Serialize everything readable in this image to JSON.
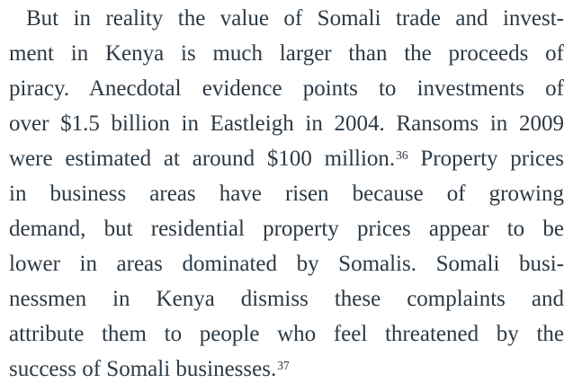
{
  "page": {
    "background_color": "#ffffff",
    "text_color": "#2c3944"
  },
  "paragraph": {
    "footnote_references": [
      "36",
      "37"
    ],
    "lines": [
      {
        "segments": [
          {
            "text": "But in reality the value of Somali trade and invest-"
          }
        ]
      },
      {
        "segments": [
          {
            "text": "ment in Kenya is much larger than the proceeds of"
          }
        ]
      },
      {
        "segments": [
          {
            "text": "piracy. Anecdotal evidence points to investments of"
          }
        ]
      },
      {
        "segments": [
          {
            "text": "over $1.5 billion in Eastleigh in 2004. Ransoms in 2009"
          }
        ]
      },
      {
        "segments": [
          {
            "text": "were estimated at around $100 million."
          },
          {
            "type": "footnote-ref",
            "text": "36"
          },
          {
            "text": " Property prices"
          }
        ]
      },
      {
        "segments": [
          {
            "text": "in business areas have risen because of growing"
          }
        ]
      },
      {
        "segments": [
          {
            "text": "demand, but residential property prices appear to be"
          }
        ]
      },
      {
        "segments": [
          {
            "text": "lower in areas dominated by Somalis. Somali busi-"
          }
        ]
      },
      {
        "segments": [
          {
            "text": "nessmen in Kenya dismiss these complaints and"
          }
        ]
      },
      {
        "segments": [
          {
            "text": "attribute them to people who feel threatened by the"
          }
        ]
      },
      {
        "segments": [
          {
            "text": "success of Somali businesses."
          },
          {
            "type": "footnote-ref",
            "text": "37"
          }
        ]
      }
    ]
  }
}
